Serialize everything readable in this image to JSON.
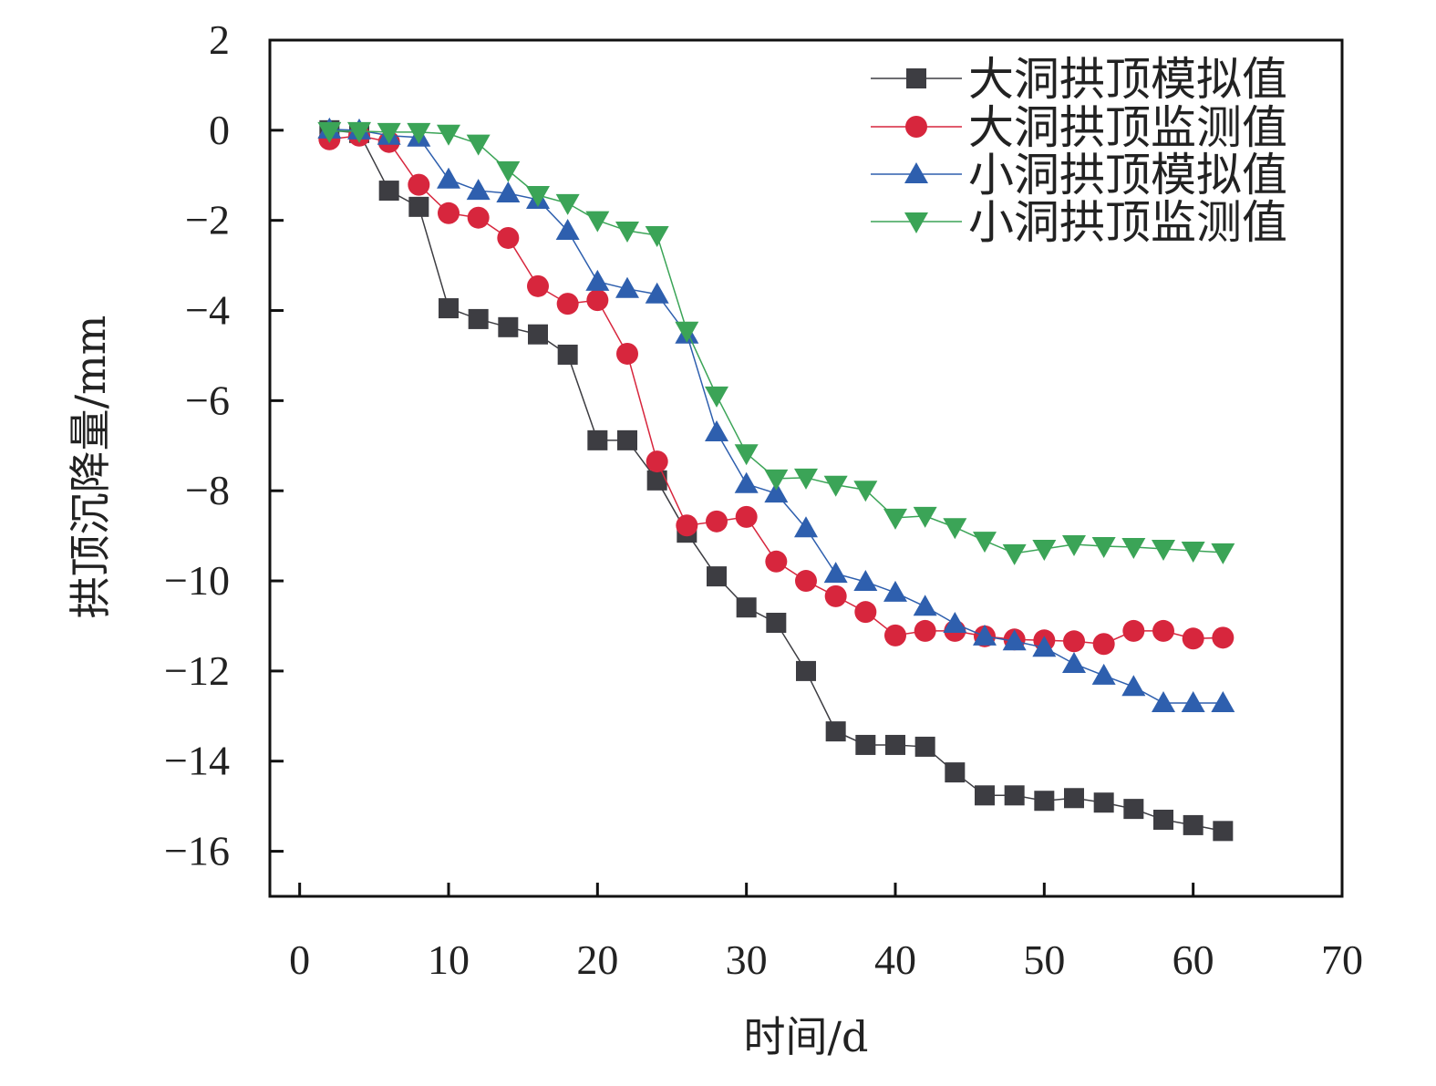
{
  "chart_data": {
    "type": "line",
    "title": "",
    "xlabel": "时间/d",
    "ylabel": "拱顶沉降量/mm",
    "xlim": [
      -2,
      70
    ],
    "ylim": [
      -17,
      2
    ],
    "xticks": [
      0,
      10,
      20,
      30,
      40,
      50,
      60,
      70
    ],
    "yticks": [
      2,
      0,
      -2,
      -4,
      -6,
      -8,
      -10,
      -12,
      -14,
      -16
    ],
    "xtick_labels": [
      "0",
      "10",
      "20",
      "30",
      "40",
      "50",
      "60",
      "70"
    ],
    "ytick_labels": [
      "2",
      "0",
      "−2",
      "−4",
      "−6",
      "−8",
      "−10",
      "−12",
      "−14",
      "−16"
    ],
    "grid": false,
    "legend_position": "top-right",
    "x": [
      2,
      4,
      6,
      8,
      10,
      12,
      14,
      16,
      18,
      20,
      22,
      24,
      26,
      28,
      30,
      32,
      34,
      36,
      38,
      40,
      42,
      44,
      46,
      48,
      50,
      52,
      54,
      56,
      58,
      60,
      62
    ],
    "series": [
      {
        "name": "大洞拱顶模拟值",
        "marker": "square",
        "color": "#3d3d42",
        "values": [
          0,
          -0.06,
          -1.34,
          -1.7,
          -3.95,
          -4.19,
          -4.37,
          -4.53,
          -4.98,
          -6.88,
          -6.88,
          -7.77,
          -8.93,
          -9.9,
          -10.59,
          -10.93,
          -12.0,
          -13.34,
          -13.64,
          -13.64,
          -13.68,
          -14.25,
          -14.76,
          -14.76,
          -14.88,
          -14.82,
          -14.92,
          -15.06,
          -15.3,
          -15.42,
          -15.55
        ]
      },
      {
        "name": "大洞拱顶监测值",
        "marker": "circle",
        "color": "#d7263d",
        "values": [
          -0.2,
          -0.12,
          -0.26,
          -1.21,
          -1.84,
          -1.94,
          -2.39,
          -3.46,
          -3.85,
          -3.77,
          -4.96,
          -7.35,
          -8.77,
          -8.68,
          -8.58,
          -9.57,
          -10.0,
          -10.34,
          -10.69,
          -11.21,
          -11.11,
          -11.11,
          -11.23,
          -11.3,
          -11.32,
          -11.34,
          -11.4,
          -11.11,
          -11.11,
          -11.28,
          -11.26
        ]
      },
      {
        "name": "小洞拱顶模拟值",
        "marker": "triangle-up",
        "color": "#2e5fae",
        "values": [
          0.02,
          0,
          -0.12,
          -0.16,
          -1.09,
          -1.34,
          -1.4,
          -1.54,
          -2.23,
          -3.36,
          -3.52,
          -3.64,
          -4.53,
          -6.7,
          -7.85,
          -8.06,
          -8.83,
          -9.84,
          -10.02,
          -10.26,
          -10.57,
          -10.95,
          -11.23,
          -11.34,
          -11.48,
          -11.84,
          -12.1,
          -12.35,
          -12.71,
          -12.71,
          -12.71
        ]
      },
      {
        "name": "小洞拱顶监测值",
        "marker": "triangle-down",
        "color": "#3ba457",
        "values": [
          -0.02,
          -0.02,
          -0.04,
          -0.04,
          -0.08,
          -0.3,
          -0.89,
          -1.44,
          -1.62,
          -2.0,
          -2.23,
          -2.33,
          -4.45,
          -5.89,
          -7.17,
          -7.73,
          -7.71,
          -7.87,
          -7.98,
          -8.6,
          -8.56,
          -8.81,
          -9.11,
          -9.39,
          -9.29,
          -9.19,
          -9.23,
          -9.25,
          -9.29,
          -9.33,
          -9.37
        ]
      }
    ]
  }
}
